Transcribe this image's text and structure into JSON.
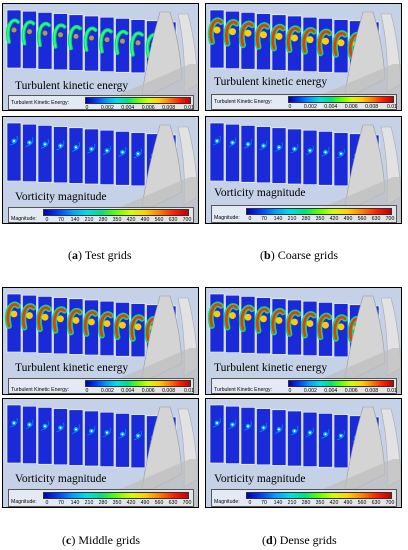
{
  "figures": [
    {
      "id": "a",
      "caption_letter": "a",
      "caption_text": "Test grids",
      "tke_label": "Turbulent kinetic energy",
      "tke_legend_title": "Turbulent Kinetic Energy:",
      "tke_ticks": [
        "0",
        "0.002",
        "0.004",
        "0.006",
        "0.008",
        "0.01"
      ],
      "vort_label": "Vorticity magnitude",
      "vort_legend_title": "Magnitude:",
      "vort_ticks": [
        "0",
        "70",
        "140",
        "210",
        "280",
        "350",
        "420",
        "490",
        "560",
        "630",
        "700"
      ]
    },
    {
      "id": "b",
      "caption_letter": "b",
      "caption_text": "Coarse grids",
      "tke_label": "Turbulent kinetic energy",
      "tke_legend_title": "Turbulent Kinetic Energy:",
      "tke_ticks": [
        "0",
        "0.002",
        "0.004",
        "0.006",
        "0.008",
        "0.01"
      ],
      "vort_label": "Vorticity magnitude",
      "vort_legend_title": "Magnitude:",
      "vort_ticks": [
        "0",
        "70",
        "140",
        "210",
        "280",
        "350",
        "420",
        "490",
        "560",
        "630",
        "700"
      ]
    },
    {
      "id": "c",
      "caption_letter": "c",
      "caption_text": "Middle grids",
      "tke_label": "Turbulent kinetic energy",
      "tke_legend_title": "Turbulent Kinetic Energy:",
      "tke_ticks": [
        "0",
        "0.002",
        "0.004",
        "0.006",
        "0.008",
        "0.01"
      ],
      "vort_label": "Vorticity magnitude",
      "vort_legend_title": "Magnitude:",
      "vort_ticks": [
        "0",
        "70",
        "140",
        "210",
        "280",
        "350",
        "420",
        "490",
        "560",
        "630",
        "700"
      ]
    },
    {
      "id": "d",
      "caption_letter": "d",
      "caption_text": "Dense grids",
      "tke_label": "Turbulent kinetic energy",
      "tke_legend_title": "Turbulent Kinetic Energy:",
      "tke_ticks": [
        "0",
        "0.002",
        "0.004",
        "0.006",
        "0.008",
        "0.01"
      ],
      "vort_label": "Vorticity magnitude",
      "vort_legend_title": "Magnitude:",
      "vort_ticks": [
        "0",
        "70",
        "140",
        "210",
        "280",
        "350",
        "420",
        "490",
        "560",
        "630",
        "700"
      ]
    }
  ],
  "colors": {
    "background_flow": "#c4d1e6",
    "slice_blue": "#1a2ad8",
    "hub_gray": "#d4d4d4"
  }
}
